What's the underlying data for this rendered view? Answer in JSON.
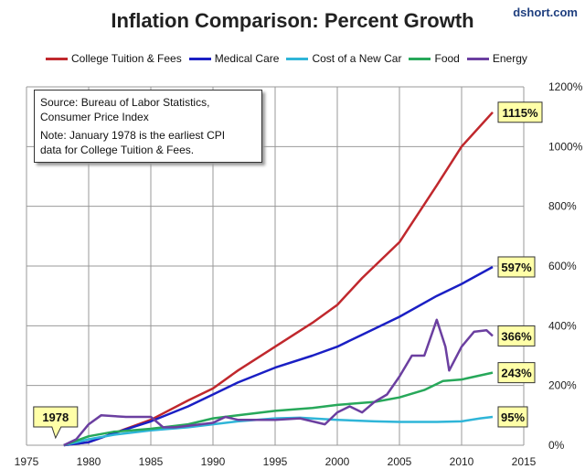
{
  "chart_data": {
    "type": "line",
    "title": "Inflation Comparison: Percent Growth",
    "source_label": "dshort.com",
    "xlim": [
      1975,
      2015
    ],
    "ylim": [
      0,
      1200
    ],
    "x_ticks": [
      "1975",
      "1980",
      "1985",
      "1990",
      "1995",
      "2000",
      "2005",
      "2010",
      "2015"
    ],
    "y_ticks": [
      "0%",
      "200%",
      "400%",
      "600%",
      "800%",
      "1000%",
      "1200%"
    ],
    "y_axis_side": "right",
    "grid": true,
    "legend_position": "top",
    "annotation_box": {
      "line1": "Source: Bureau of Labor Statistics,",
      "line2": "Consumer Price Index",
      "line3": "Note: January 1978  is the earliest CPI",
      "line4": "data for College Tuition & Fees."
    },
    "start_label": "1978",
    "series": [
      {
        "name": "College Tuition & Fees",
        "color": "#c0282d",
        "end_label": "1115%",
        "x": [
          1978,
          1980,
          1982,
          1985,
          1988,
          1990,
          1992,
          1995,
          1998,
          2000,
          2002,
          2005,
          2008,
          2010,
          2012.5
        ],
        "y": [
          0,
          10,
          40,
          85,
          150,
          190,
          250,
          330,
          410,
          470,
          560,
          680,
          870,
          1000,
          1115
        ]
      },
      {
        "name": "Medical Care",
        "color": "#1a1fc4",
        "end_label": "597%",
        "x": [
          1978,
          1980,
          1982,
          1985,
          1988,
          1990,
          1992,
          1995,
          1998,
          2000,
          2002,
          2005,
          2008,
          2010,
          2012.5
        ],
        "y": [
          0,
          10,
          40,
          80,
          130,
          170,
          210,
          260,
          300,
          330,
          370,
          430,
          500,
          540,
          597
        ]
      },
      {
        "name": "Cost of a New Car",
        "color": "#2fb5d8",
        "end_label": "95%",
        "x": [
          1978,
          1980,
          1982,
          1985,
          1988,
          1990,
          1992,
          1995,
          1997,
          2000,
          2003,
          2005,
          2008,
          2010,
          2011.5,
          2012.5
        ],
        "y": [
          0,
          20,
          35,
          50,
          60,
          70,
          80,
          90,
          92,
          85,
          80,
          78,
          78,
          80,
          90,
          95
        ]
      },
      {
        "name": "Food",
        "color": "#27a85a",
        "end_label": "243%",
        "x": [
          1978,
          1980,
          1982,
          1985,
          1988,
          1990,
          1992,
          1995,
          1998,
          2000,
          2003,
          2005,
          2007,
          2008.5,
          2010,
          2012.5
        ],
        "y": [
          0,
          30,
          45,
          55,
          70,
          90,
          100,
          115,
          125,
          135,
          145,
          160,
          185,
          215,
          220,
          243
        ]
      },
      {
        "name": "Energy",
        "color": "#6b3fa0",
        "end_label": "366%",
        "x": [
          1978,
          1979,
          1980,
          1981,
          1983,
          1985,
          1986,
          1987,
          1990,
          1991,
          1992,
          1995,
          1997,
          1999,
          2000,
          2001,
          2002,
          2003,
          2004,
          2005,
          2006,
          2007,
          2008,
          2008.7,
          2009,
          2010,
          2011,
          2012,
          2012.5
        ],
        "y": [
          0,
          20,
          70,
          100,
          95,
          95,
          60,
          60,
          75,
          95,
          85,
          85,
          90,
          70,
          110,
          130,
          110,
          145,
          170,
          230,
          300,
          300,
          420,
          330,
          250,
          330,
          380,
          385,
          366
        ]
      }
    ]
  }
}
